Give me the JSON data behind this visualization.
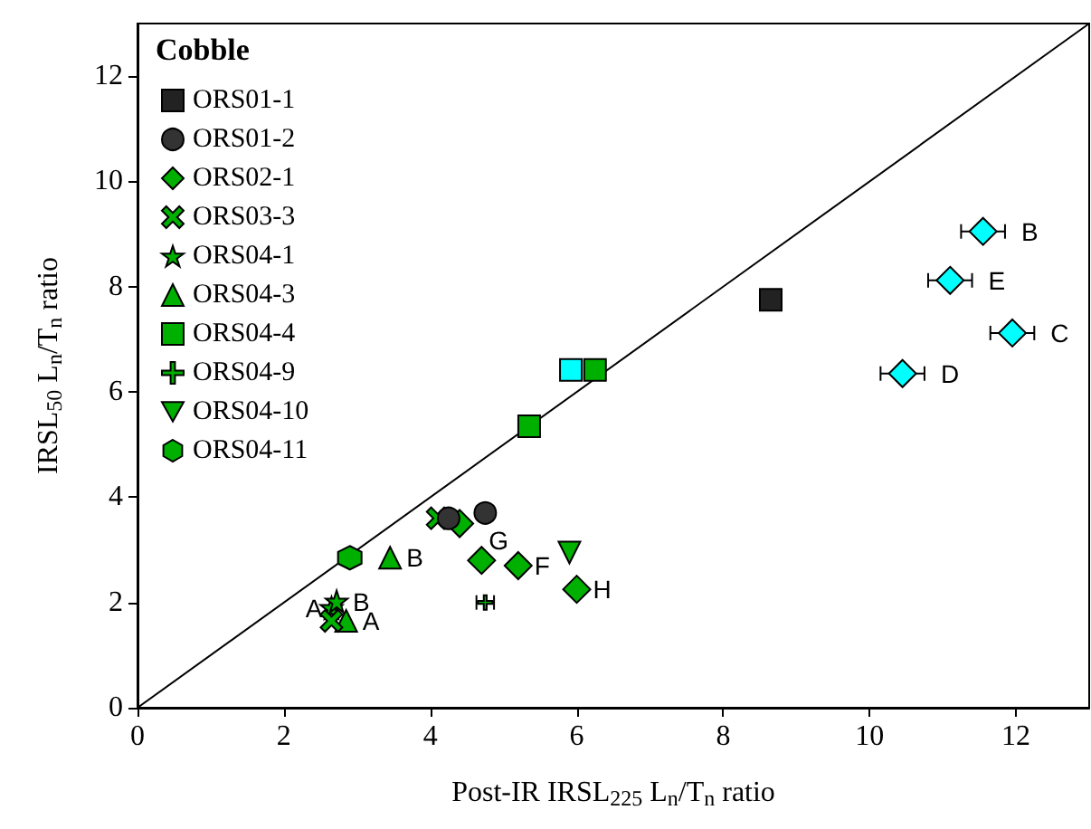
{
  "chart_data": {
    "type": "scatter",
    "xlabel": "Post-IR IRSL$_{225}$ L$_{n}$/T$_{n}$ ratio",
    "ylabel": "IRSL$_{50}$ L$_{n}$/T$_{n}$ ratio",
    "legend_title": "Cobble",
    "legend": "top left",
    "grid": false,
    "xlim": [
      0,
      13
    ],
    "ylim": [
      0,
      13
    ],
    "xticks": [
      0,
      2,
      4,
      6,
      8,
      10,
      12
    ],
    "yticks": [
      0,
      2,
      4,
      6,
      8,
      10,
      12
    ],
    "series": [
      {
        "name": "ORS01-1",
        "color": "#222222",
        "marker": "square",
        "x": [
          8.65
        ],
        "values": [
          7.75
        ]
      },
      {
        "name": "ORS01-2",
        "color": "#333333",
        "marker": "circle",
        "x": [
          4.25,
          4.75
        ],
        "values": [
          3.6,
          3.7
        ]
      },
      {
        "name": "ORS02-1",
        "color": "#00b000",
        "marker": "diamond",
        "x": [
          4.4,
          4.7,
          5.2,
          6.0
        ],
        "values": [
          3.5,
          2.8,
          2.7,
          2.25
        ]
      },
      {
        "name": "ORS03-3",
        "color": "#00b000",
        "marker": "cross",
        "x": [
          2.65,
          4.1
        ],
        "values": [
          1.65,
          3.6
        ]
      },
      {
        "name": "ORS04-1",
        "color": "#00b000",
        "marker": "star",
        "x": [
          2.65,
          2.72
        ],
        "values": [
          1.9,
          2.02
        ]
      },
      {
        "name": "ORS04-3",
        "color": "#00b000",
        "marker": "triangle",
        "x": [
          2.85,
          3.45
        ],
        "values": [
          1.65,
          2.85
        ]
      },
      {
        "name": "ORS04-4",
        "color": "#00b000",
        "marker": "square",
        "x": [
          5.35,
          6.25
        ],
        "values": [
          5.35,
          6.42
        ]
      },
      {
        "name": "ORS04-9",
        "color": "#00b000",
        "marker": "plus",
        "x": [
          4.75
        ],
        "values": [
          2.0
        ],
        "xerrors": [
          0.12
        ]
      },
      {
        "name": "ORS04-10",
        "color": "#00b000",
        "marker": "triangle-down",
        "x": [
          5.9
        ],
        "values": [
          2.95
        ]
      },
      {
        "name": "ORS04-11",
        "color": "#00b000",
        "x": [
          2.9
        ],
        "values": [
          2.85
        ]
      },
      {
        "color": "#00ffff",
        "marker": "square",
        "x": [
          5.92
        ],
        "values": [
          6.42
        ]
      },
      {
        "color": "#00ffff",
        "marker": "diamond",
        "x": [
          11.55,
          11.1,
          11.95,
          10.45
        ],
        "values": [
          9.05,
          8.12,
          7.12,
          6.35
        ],
        "xerrors": [
          0.3,
          0.3,
          0.3,
          0.3
        ]
      },
      {
        "type": "line",
        "color": "#000000",
        "marker": "none",
        "x": [
          0,
          13
        ],
        "values": [
          0,
          13
        ]
      }
    ],
    "annotations": [
      {
        "text": "A",
        "x": 2.65,
        "y": 1.9
      },
      {
        "text": "B",
        "x": 2.72,
        "y": 2.02
      },
      {
        "text": "A",
        "x": 2.85,
        "y": 1.65
      },
      {
        "text": "B",
        "x": 3.45,
        "y": 2.85
      },
      {
        "text": "G",
        "x": 4.7,
        "y": 2.8
      },
      {
        "text": "F",
        "x": 5.2,
        "y": 2.7
      },
      {
        "text": "H",
        "x": 6.0,
        "y": 2.25
      },
      {
        "text": "B",
        "x": 11.55,
        "y": 9.05
      },
      {
        "text": "E",
        "x": 11.1,
        "y": 8.12
      },
      {
        "text": "C",
        "x": 11.95,
        "y": 7.12
      },
      {
        "text": "D",
        "x": 10.45,
        "y": 6.35
      }
    ]
  }
}
